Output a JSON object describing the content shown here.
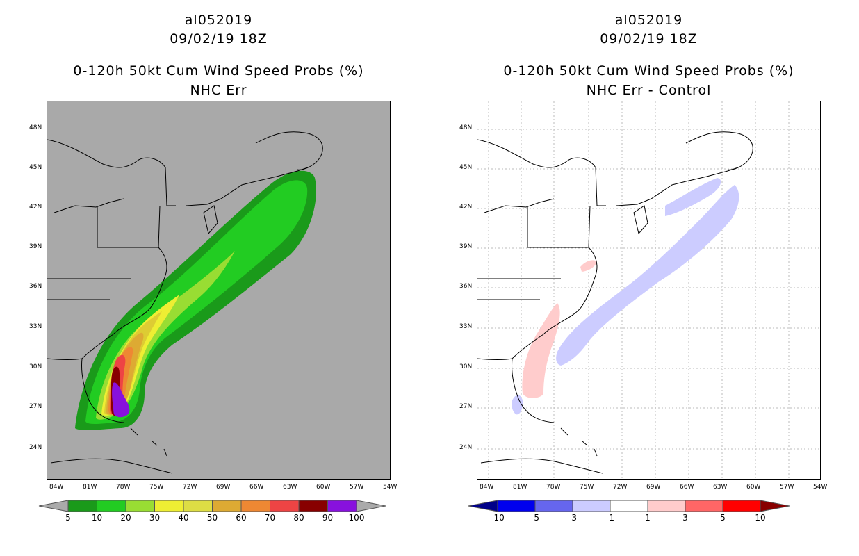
{
  "left": {
    "storm_id": "al052019",
    "datetime": "09/02/19 18Z",
    "product": "0-120h 50kt Cum Wind Speed Probs (%)",
    "subtitle": "NHC Err",
    "colorbar": {
      "labels": [
        "5",
        "10",
        "20",
        "30",
        "40",
        "50",
        "60",
        "70",
        "80",
        "90",
        "100"
      ],
      "colors": [
        "#1a9a1a",
        "#22cc22",
        "#99dd33",
        "#eeee33",
        "#dddd44",
        "#ddaa33",
        "#ee8833",
        "#ee4444",
        "#880000",
        "#8811dd",
        "#aaaaaa"
      ]
    }
  },
  "right": {
    "storm_id": "al052019",
    "datetime": "09/02/19 18Z",
    "product": "0-120h 50kt Cum Wind Speed Probs (%)",
    "subtitle": "NHC Err - Control",
    "colorbar": {
      "labels": [
        "-10",
        "-5",
        "-3",
        "-1",
        "1",
        "3",
        "5",
        "10"
      ],
      "colors": [
        "#000088",
        "#0000ee",
        "#6666ee",
        "#ccccff",
        "#ffffff",
        "#ffcccc",
        "#ff6666",
        "#ff0000",
        "#880000"
      ]
    }
  },
  "lat_labels": [
    "48N",
    "45N",
    "42N",
    "39N",
    "36N",
    "33N",
    "30N",
    "27N",
    "24N"
  ],
  "lon_labels": [
    "84W",
    "81W",
    "78W",
    "75W",
    "72W",
    "69W",
    "66W",
    "63W",
    "60W",
    "57W",
    "54W"
  ],
  "palette": {
    "ocean_gray": "#a9a9a9",
    "green_dark": "#1a9a1a",
    "green": "#22cc22",
    "yellow_green": "#99dd33",
    "yellow": "#eeee33",
    "gold": "#ddcc33",
    "orange": "#ddaa33",
    "dark_orange": "#ee8833",
    "red": "#ee4444",
    "dark_red": "#880000",
    "purple": "#8811dd",
    "diff_blue": "#ccccff",
    "diff_pink": "#ffcccc"
  }
}
